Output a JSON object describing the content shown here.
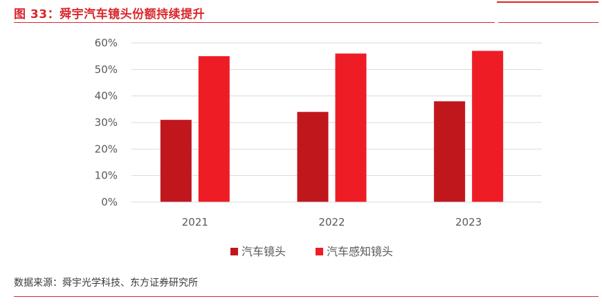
{
  "header": {
    "title": "图 33：舜宇汽车镜头份额持续提升"
  },
  "footer": {
    "source": "数据来源：舜宇光学科技、东方证券研究所"
  },
  "chart_data": {
    "type": "bar",
    "categories": [
      "2021",
      "2022",
      "2023"
    ],
    "series": [
      {
        "name": "汽车镜头",
        "values": [
          0.31,
          0.34,
          0.38
        ],
        "color": "#c0171d"
      },
      {
        "name": "汽车感知镜头",
        "values": [
          0.55,
          0.56,
          0.57
        ],
        "color": "#ee1c25"
      }
    ],
    "ylim": [
      0,
      0.6
    ],
    "yticks": [
      "0%",
      "10%",
      "20%",
      "30%",
      "40%",
      "50%",
      "60%"
    ],
    "grid": true,
    "legend": "bottom"
  }
}
